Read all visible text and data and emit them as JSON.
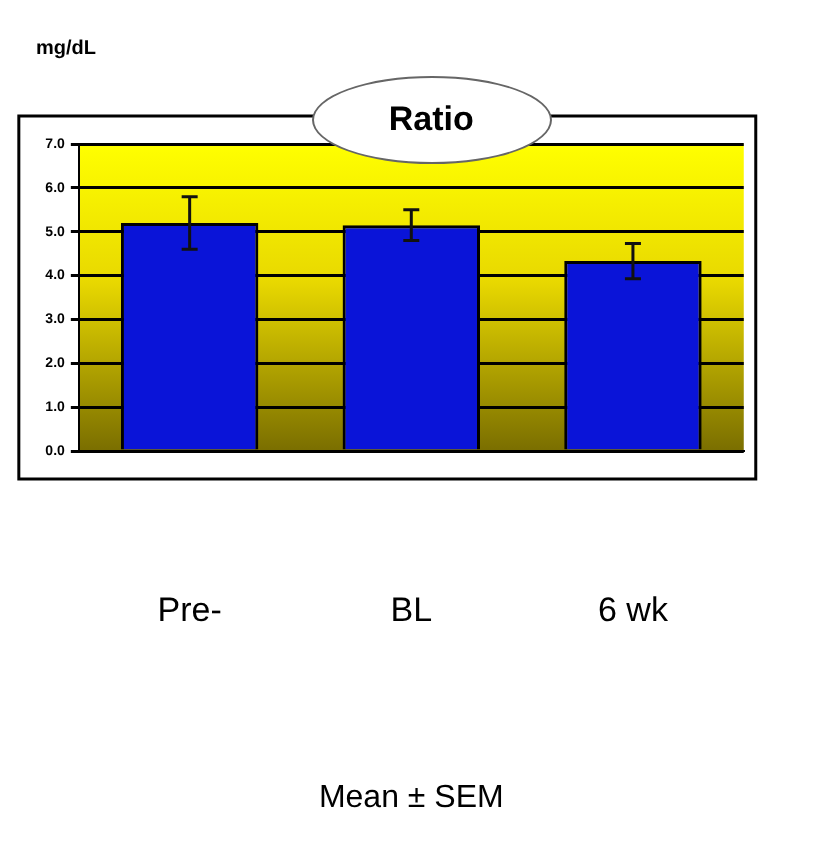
{
  "chart_data": {
    "type": "bar",
    "title": "Ratio",
    "ylabel": "mg/dL",
    "categories": [
      "Pre-",
      "BL",
      "6 wk"
    ],
    "values": [
      5.2,
      5.15,
      4.33
    ],
    "errors": [
      0.6,
      0.35,
      0.4
    ],
    "color": "#0a14d8",
    "ylim": [
      0,
      7
    ],
    "yticks": [
      {
        "value": 0,
        "label": "0.0"
      },
      {
        "value": 1,
        "label": "1.0"
      },
      {
        "value": 2,
        "label": "2.0"
      },
      {
        "value": 3,
        "label": "3.0"
      },
      {
        "value": 4,
        "label": "4.0"
      },
      {
        "value": 5,
        "label": "5.0"
      },
      {
        "value": 6,
        "label": "6.0"
      },
      {
        "value": 7,
        "label": "7.0"
      }
    ],
    "grid": "y",
    "legend": false,
    "annotations": [
      "Mean ± SEM"
    ]
  }
}
